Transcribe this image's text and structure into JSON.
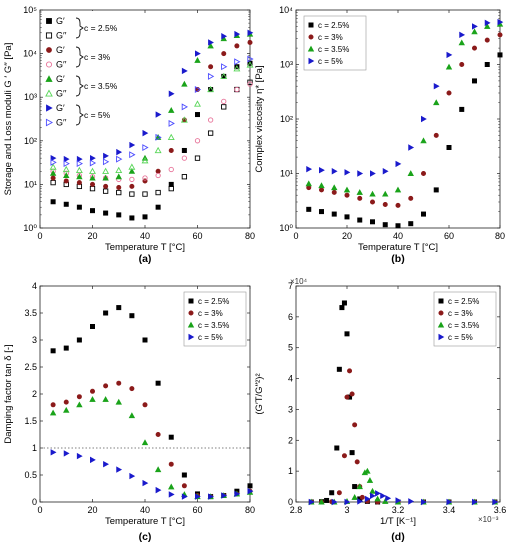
{
  "chart_data": [
    {
      "type": "scatter",
      "panel_label": "(a)",
      "xlabel": "Temperature T [°C]",
      "ylabel": "Storage and Loss moduli G ′ G′′ [Pa]",
      "xlim": [
        0,
        80
      ],
      "ylim": [
        1,
        100000
      ],
      "yscale": "log",
      "x_ticks": [
        "0",
        "20",
        "40",
        "60",
        "80"
      ],
      "y_ticks": [
        "10⁰",
        "10¹",
        "10²",
        "10³",
        "10⁴",
        "10⁵"
      ],
      "legend": {
        "position": "top-left",
        "entries": [
          {
            "symbol": "G′",
            "group": "c = 2.5%"
          },
          {
            "symbol": "G′′",
            "group": "c = 2.5%"
          },
          {
            "symbol": "G′",
            "group": "c = 3%"
          },
          {
            "symbol": "G′′",
            "group": "c = 3%"
          },
          {
            "symbol": "G′",
            "group": "c = 3.5%"
          },
          {
            "symbol": "G′′",
            "group": "c = 3.5%"
          },
          {
            "symbol": "G′",
            "group": "c = 5%"
          },
          {
            "symbol": "G′′",
            "group": "c = 5%"
          }
        ],
        "groups": [
          "c = 2.5%",
          "c = 3%",
          "c = 3.5%",
          "c = 5%"
        ]
      },
      "series": [
        {
          "concentration": "2.5%",
          "modulus": "G′",
          "marker": "square",
          "filled": true,
          "color": "#000000",
          "x": [
            5,
            10,
            15,
            20,
            25,
            30,
            35,
            40,
            45,
            50,
            55,
            60,
            65,
            70,
            75,
            80
          ],
          "y": [
            4,
            3.5,
            3,
            2.5,
            2.2,
            2,
            1.7,
            1.8,
            3,
            10,
            60,
            400,
            1500,
            3000,
            5000,
            6000
          ]
        },
        {
          "concentration": "2.5%",
          "modulus": "G′′",
          "marker": "square",
          "filled": false,
          "color": "#000000",
          "x": [
            5,
            10,
            15,
            20,
            25,
            30,
            35,
            40,
            45,
            50,
            55,
            60,
            65,
            70,
            75,
            80
          ],
          "y": [
            11,
            10,
            9,
            8,
            7,
            6.5,
            6,
            6,
            6.5,
            8,
            15,
            40,
            150,
            600,
            1500,
            2200
          ]
        },
        {
          "concentration": "3%",
          "modulus": "G′",
          "marker": "circle",
          "filled": true,
          "color": "#8b1a1a",
          "x": [
            5,
            10,
            15,
            20,
            25,
            30,
            35,
            40,
            45,
            50,
            55,
            60,
            65,
            70,
            75,
            80
          ],
          "y": [
            14,
            12,
            11,
            10,
            9,
            8.5,
            9,
            12,
            20,
            60,
            300,
            1500,
            5000,
            10000,
            15000,
            18000
          ]
        },
        {
          "concentration": "3%",
          "modulus": "G′′",
          "marker": "circle",
          "filled": false,
          "color": "#e8749a",
          "x": [
            5,
            10,
            15,
            20,
            25,
            30,
            35,
            40,
            45,
            50,
            55,
            60,
            65,
            70,
            75,
            80
          ],
          "y": [
            20,
            18,
            16,
            15,
            14,
            13,
            13,
            14,
            16,
            22,
            40,
            100,
            300,
            800,
            1500,
            2000
          ]
        },
        {
          "concentration": "3.5%",
          "modulus": "G′",
          "marker": "triangle",
          "filled": true,
          "color": "#1aa31a",
          "x": [
            5,
            10,
            15,
            20,
            25,
            30,
            35,
            40,
            45,
            50,
            55,
            60,
            65,
            70,
            75,
            80
          ],
          "y": [
            18,
            16,
            15,
            14,
            14,
            15,
            20,
            40,
            120,
            500,
            2000,
            7000,
            15000,
            22000,
            26000,
            28000
          ]
        },
        {
          "concentration": "3.5%",
          "modulus": "G′′",
          "marker": "triangle",
          "filled": false,
          "color": "#59d659",
          "x": [
            5,
            10,
            15,
            20,
            25,
            30,
            35,
            40,
            45,
            50,
            55,
            60,
            65,
            70,
            75,
            80
          ],
          "y": [
            25,
            22,
            21,
            20,
            20,
            21,
            25,
            35,
            60,
            120,
            300,
            700,
            1500,
            3000,
            4500,
            5500
          ]
        },
        {
          "concentration": "5%",
          "modulus": "G′",
          "marker": "triangle-right",
          "filled": true,
          "color": "#1a1acc",
          "x": [
            5,
            10,
            15,
            20,
            25,
            30,
            35,
            40,
            45,
            50,
            55,
            60,
            65,
            70,
            75,
            80
          ],
          "y": [
            40,
            38,
            38,
            40,
            45,
            55,
            80,
            150,
            400,
            1200,
            4000,
            10000,
            18000,
            25000,
            28000,
            30000
          ]
        },
        {
          "concentration": "5%",
          "modulus": "G′′",
          "marker": "triangle-right",
          "filled": false,
          "color": "#4d4dff",
          "x": [
            5,
            10,
            15,
            20,
            25,
            30,
            35,
            40,
            45,
            50,
            55,
            60,
            65,
            70,
            75,
            80
          ],
          "y": [
            32,
            30,
            30,
            31,
            33,
            38,
            48,
            70,
            120,
            250,
            600,
            1500,
            3000,
            5000,
            6500,
            7500
          ]
        }
      ]
    },
    {
      "type": "scatter",
      "panel_label": "(b)",
      "xlabel": "Temperature T [°C]",
      "ylabel": "Complex viscosity η* [Pa]",
      "xlim": [
        0,
        80
      ],
      "ylim": [
        1,
        10000
      ],
      "yscale": "log",
      "x_ticks": [
        "0",
        "20",
        "40",
        "60",
        "80"
      ],
      "y_ticks": [
        "10⁰",
        "10¹",
        "10²",
        "10³",
        "10⁴"
      ],
      "legend": {
        "position": "top-left",
        "entries": [
          "c = 2.5%",
          "c = 3%",
          "c = 3.5%",
          "c = 5%"
        ]
      },
      "series": [
        {
          "name": "c = 2.5%",
          "marker": "square",
          "color": "#000000",
          "x": [
            5,
            10,
            15,
            20,
            25,
            30,
            35,
            40,
            45,
            50,
            55,
            60,
            65,
            70,
            75,
            80
          ],
          "y": [
            2.2,
            2,
            1.8,
            1.6,
            1.4,
            1.3,
            1.15,
            1.1,
            1.2,
            1.8,
            5,
            30,
            150,
            500,
            1000,
            1500
          ]
        },
        {
          "name": "c = 3%",
          "marker": "circle",
          "color": "#8b1a1a",
          "x": [
            5,
            10,
            15,
            20,
            25,
            30,
            35,
            40,
            45,
            50,
            55,
            60,
            65,
            70,
            75,
            80
          ],
          "y": [
            5.5,
            5,
            4.5,
            4,
            3.5,
            3,
            2.7,
            2.6,
            3.5,
            10,
            50,
            300,
            1000,
            2000,
            2800,
            3500
          ]
        },
        {
          "name": "c = 3.5%",
          "marker": "triangle",
          "color": "#1aa31a",
          "x": [
            5,
            10,
            15,
            20,
            25,
            30,
            35,
            40,
            45,
            50,
            55,
            60,
            65,
            70,
            75,
            80
          ],
          "y": [
            6.5,
            6,
            5.5,
            5,
            4.5,
            4.2,
            4.2,
            5,
            10,
            40,
            200,
            900,
            2500,
            4000,
            5000,
            5500
          ]
        },
        {
          "name": "c = 5%",
          "marker": "triangle-right",
          "color": "#1a1acc",
          "x": [
            5,
            10,
            15,
            20,
            25,
            30,
            35,
            40,
            45,
            50,
            55,
            60,
            65,
            70,
            75,
            80
          ],
          "y": [
            12,
            11.5,
            11,
            10.5,
            10,
            10,
            11,
            15,
            30,
            100,
            400,
            1500,
            3500,
            5000,
            5800,
            6000
          ]
        }
      ]
    },
    {
      "type": "scatter",
      "panel_label": "(c)",
      "xlabel": "Temperature T [°C]",
      "ylabel": "Damping factor tan δ  [-]",
      "xlim": [
        0,
        80
      ],
      "ylim": [
        0,
        4
      ],
      "x_ticks": [
        "0",
        "20",
        "40",
        "60",
        "80"
      ],
      "y_ticks": [
        "0",
        "0.5",
        "1",
        "1.5",
        "2",
        "2.5",
        "3",
        "3.5",
        "4"
      ],
      "reference_line": {
        "y": 1,
        "style": "dotted"
      },
      "legend": {
        "position": "top-right",
        "entries": [
          "c = 2.5%",
          "c = 3%",
          "c = 3.5%",
          "c = 5%"
        ]
      },
      "series": [
        {
          "name": "c = 2.5%",
          "marker": "square",
          "color": "#000000",
          "x": [
            5,
            10,
            15,
            20,
            25,
            30,
            35,
            40,
            45,
            50,
            55,
            60,
            65,
            70,
            75,
            80
          ],
          "y": [
            2.8,
            2.85,
            3.0,
            3.25,
            3.5,
            3.6,
            3.45,
            3.0,
            2.2,
            1.2,
            0.5,
            0.15,
            0.1,
            0.12,
            0.2,
            0.3
          ]
        },
        {
          "name": "c = 3%",
          "marker": "circle",
          "color": "#8b1a1a",
          "x": [
            5,
            10,
            15,
            20,
            25,
            30,
            35,
            40,
            45,
            50,
            55,
            60,
            65,
            70,
            75,
            80
          ],
          "y": [
            1.8,
            1.85,
            1.95,
            2.05,
            2.15,
            2.2,
            2.1,
            1.8,
            1.25,
            0.7,
            0.3,
            0.12,
            0.1,
            0.12,
            0.15,
            0.2
          ]
        },
        {
          "name": "c = 3.5%",
          "marker": "triangle",
          "color": "#1aa31a",
          "x": [
            5,
            10,
            15,
            20,
            25,
            30,
            35,
            40,
            45,
            50,
            55,
            60,
            65,
            70,
            75,
            80
          ],
          "y": [
            1.65,
            1.7,
            1.8,
            1.9,
            1.9,
            1.85,
            1.6,
            1.1,
            0.6,
            0.28,
            0.14,
            0.1,
            0.1,
            0.12,
            0.15,
            0.18
          ]
        },
        {
          "name": "c = 5%",
          "marker": "triangle-right",
          "color": "#1a1acc",
          "x": [
            5,
            10,
            15,
            20,
            25,
            30,
            35,
            40,
            45,
            50,
            55,
            60,
            65,
            70,
            75,
            80
          ],
          "y": [
            0.92,
            0.9,
            0.85,
            0.78,
            0.7,
            0.6,
            0.48,
            0.35,
            0.22,
            0.14,
            0.1,
            0.1,
            0.1,
            0.12,
            0.15,
            0.2
          ]
        }
      ]
    },
    {
      "type": "scatter",
      "panel_label": "(d)",
      "xlabel": "1/T [K⁻¹]",
      "ylabel": "(G′T/G′′²)²",
      "x_multiplier": "×10⁻³",
      "y_multiplier": "×10⁴",
      "xlim": [
        2.8,
        3.6
      ],
      "ylim": [
        0,
        7
      ],
      "x_ticks": [
        "2.8",
        "3",
        "3.2",
        "3.4",
        "3.6"
      ],
      "y_ticks": [
        "0",
        "1",
        "2",
        "3",
        "4",
        "5",
        "6",
        "7"
      ],
      "legend": {
        "position": "top-right",
        "entries": [
          "c = 2.5%",
          "c = 3%",
          "c = 3.5%",
          "c = 5%"
        ]
      },
      "series": [
        {
          "name": "c = 2.5%",
          "marker": "square",
          "color": "#000000",
          "x": [
            2.86,
            2.9,
            2.92,
            2.94,
            2.96,
            2.97,
            2.98,
            2.99,
            3.0,
            3.01,
            3.02,
            3.03,
            3.05,
            3.08,
            3.12,
            3.2,
            3.3,
            3.4,
            3.5,
            3.58
          ],
          "y": [
            0,
            0.01,
            0.05,
            0.3,
            1.75,
            4.3,
            6.3,
            6.45,
            5.45,
            3.4,
            1.6,
            0.5,
            0.1,
            0.02,
            0,
            0,
            0,
            0,
            0,
            0
          ]
        },
        {
          "name": "c = 3%",
          "marker": "circle",
          "color": "#8b1a1a",
          "x": [
            2.86,
            2.9,
            2.94,
            2.97,
            2.99,
            3.0,
            3.01,
            3.02,
            3.03,
            3.04,
            3.05,
            3.06,
            3.08,
            3.12,
            3.2,
            3.3,
            3.4,
            3.5,
            3.58
          ],
          "y": [
            0,
            0,
            0.01,
            0.3,
            1.5,
            3.4,
            4.25,
            3.5,
            2.5,
            1.3,
            0.5,
            0.15,
            0.03,
            0,
            0,
            0,
            0,
            0,
            0
          ]
        },
        {
          "name": "c = 3.5%",
          "marker": "triangle",
          "color": "#1aa31a",
          "x": [
            2.86,
            2.9,
            2.95,
            3.0,
            3.03,
            3.05,
            3.07,
            3.08,
            3.09,
            3.1,
            3.12,
            3.15,
            3.2,
            3.3,
            3.4,
            3.5,
            3.58
          ],
          "y": [
            0,
            0,
            0,
            0.02,
            0.15,
            0.5,
            0.95,
            1.0,
            0.7,
            0.35,
            0.1,
            0.02,
            0,
            0,
            0,
            0,
            0
          ]
        },
        {
          "name": "c = 5%",
          "marker": "triangle-right",
          "color": "#1a1acc",
          "x": [
            2.86,
            2.95,
            3.0,
            3.05,
            3.08,
            3.1,
            3.12,
            3.14,
            3.16,
            3.2,
            3.25,
            3.3,
            3.4,
            3.5,
            3.58
          ],
          "y": [
            0,
            0,
            0,
            0.02,
            0.1,
            0.2,
            0.28,
            0.2,
            0.12,
            0.05,
            0.02,
            0,
            0,
            0,
            0
          ]
        }
      ]
    }
  ]
}
